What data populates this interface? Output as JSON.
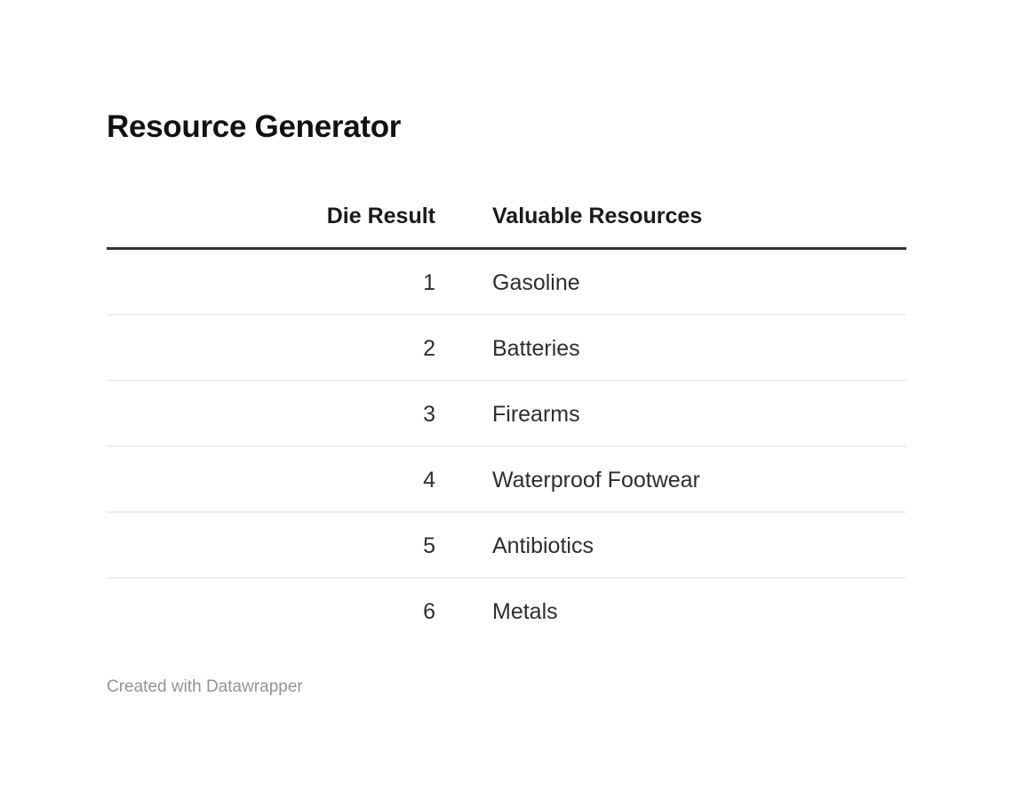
{
  "page": {
    "background_color": "#ffffff",
    "text_color": "#2e2e2e",
    "header_rule_color": "#333333",
    "row_divider_color": "#eeeeee",
    "footer_text_color": "#949494"
  },
  "title": "Resource Generator",
  "footer": {
    "attribution": "Created with Datawrapper"
  },
  "chart_data": {
    "type": "table",
    "title": "Resource Generator",
    "columns": [
      "Die Result",
      "Valuable Resources"
    ],
    "column_alignments": [
      "right",
      "left"
    ],
    "rows": [
      [
        "1",
        "Gasoline"
      ],
      [
        "2",
        "Batteries"
      ],
      [
        "3",
        "Firearms"
      ],
      [
        "4",
        "Waterproof Footwear"
      ],
      [
        "5",
        "Antibiotics"
      ],
      [
        "6",
        "Metals"
      ]
    ],
    "attribution": "Created with Datawrapper",
    "grid": "horizontal-dividers",
    "legend_position": "none"
  }
}
